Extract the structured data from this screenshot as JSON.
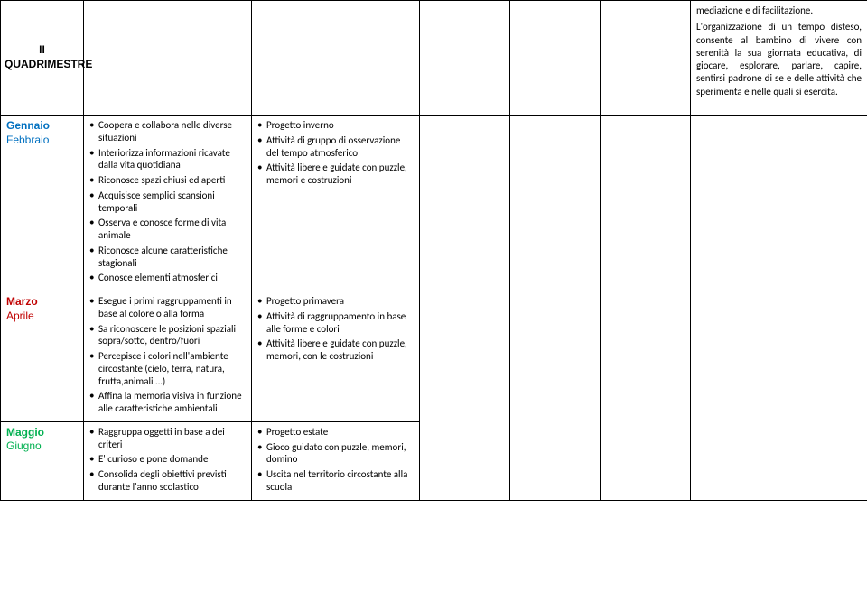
{
  "header": {
    "quadrimestre_line1": "II",
    "quadrimestre_line2": "QUADRIMESTRE"
  },
  "notes": {
    "para1": "mediazione e di facilitazione.",
    "para2": "L'organizzazione di un tempo disteso, consente al bambino di vivere con serenità la sua giornata educativa, di giocare, esplorare, parlare, capire, sentirsi padrone di se e delle attività che sperimenta e nelle quali si esercita."
  },
  "rows": [
    {
      "period_label": "Gennaio",
      "period_sub": "Febbraio",
      "period_color": "#0070c0",
      "objectives": [
        "Coopera e collabora nelle diverse situazioni",
        "Interiorizza informazioni ricavate dalla vita quotidiana",
        "Riconosce spazi chiusi ed aperti",
        "Acquisisce semplici scansioni temporali",
        "Osserva e conosce forme di vita animale",
        "Riconosce alcune caratteristiche stagionali",
        "Conosce elementi atmosferici"
      ],
      "activities": [
        "Progetto inverno",
        "Attività di gruppo di osservazione del tempo atmosferico",
        "Attività libere e guidate con puzzle, memori e  costruzioni"
      ]
    },
    {
      "period_label": "Marzo",
      "period_sub": "Aprile",
      "period_color": "#c00000",
      "objectives": [
        "Esegue i primi raggruppamenti in base al colore o alla forma",
        "Sa riconoscere le posizioni spaziali sopra/sotto, dentro/fuori",
        "Percepisce i colori nell'ambiente circostante (cielo, terra, natura, frutta,animali….)",
        "Affina la memoria visiva in funzione alle caratteristiche ambientali"
      ],
      "activities": [
        "Progetto primavera",
        "Attività di raggruppamento in base alle forme e colori",
        "Attività libere e guidate con puzzle, memori, con le costruzioni"
      ]
    },
    {
      "period_label": "Maggio",
      "period_sub": "Giugno",
      "period_color": "#00b050",
      "objectives": [
        "Raggruppa oggetti in base a dei criteri",
        "E' curioso e pone domande",
        "Consolida degli obiettivi previsti durante l'anno scolastico"
      ],
      "activities": [
        "Progetto estate",
        "Gioco guidato con puzzle, memori, domino",
        "Uscita nel territorio circostante alla scuola"
      ]
    }
  ]
}
